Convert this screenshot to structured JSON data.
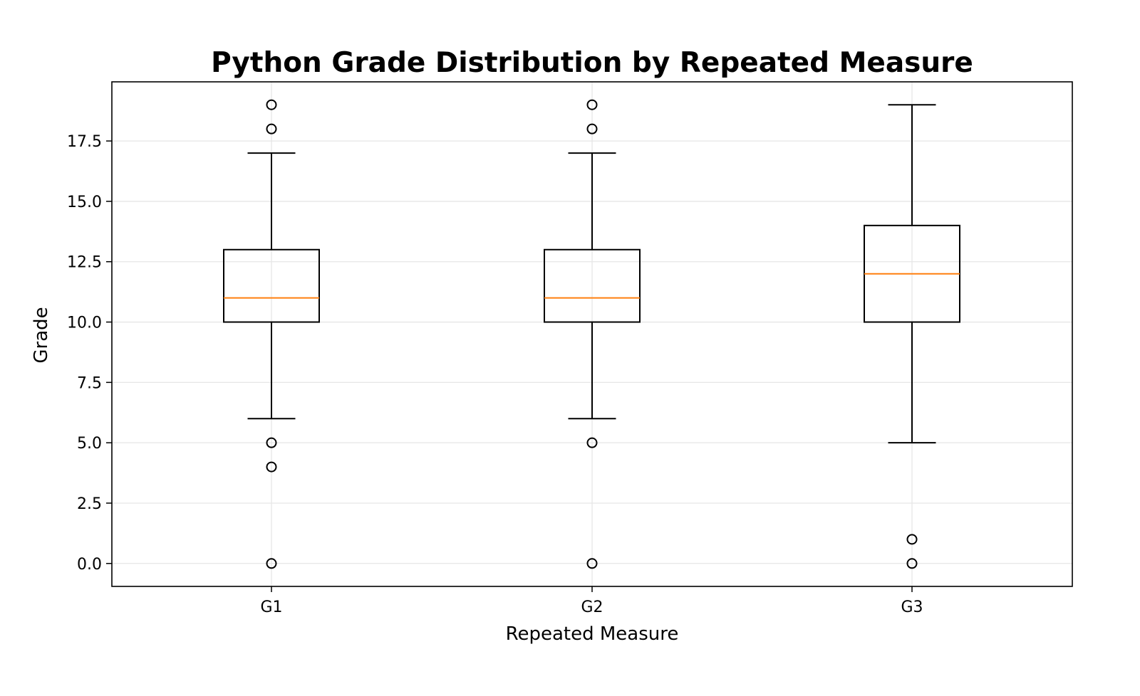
{
  "chart_data": {
    "type": "box",
    "title": "Python Grade Distribution by Repeated Measure",
    "xlabel": "Repeated Measure",
    "ylabel": "Grade",
    "ylim": [
      -0.95,
      19.95
    ],
    "yticks": [
      "0.0",
      "2.5",
      "5.0",
      "7.5",
      "10.0",
      "12.5",
      "15.0",
      "17.5"
    ],
    "grid": true,
    "categories": [
      "G1",
      "G2",
      "G3"
    ],
    "boxes": [
      {
        "label": "G1",
        "whisker_low": 6,
        "q1": 10,
        "median": 11,
        "q3": 13,
        "whisker_high": 17,
        "outliers": [
          0,
          4,
          5,
          18,
          19
        ]
      },
      {
        "label": "G2",
        "whisker_low": 6,
        "q1": 10,
        "median": 11,
        "q3": 13,
        "whisker_high": 17,
        "outliers": [
          0,
          5,
          18,
          19
        ]
      },
      {
        "label": "G3",
        "whisker_low": 5,
        "q1": 10,
        "median": 12,
        "q3": 14,
        "whisker_high": 19,
        "outliers": [
          0,
          1
        ]
      }
    ],
    "colors": {
      "box": "#000000",
      "median": "#ff7f0e",
      "grid": "#e6e6e6"
    }
  }
}
